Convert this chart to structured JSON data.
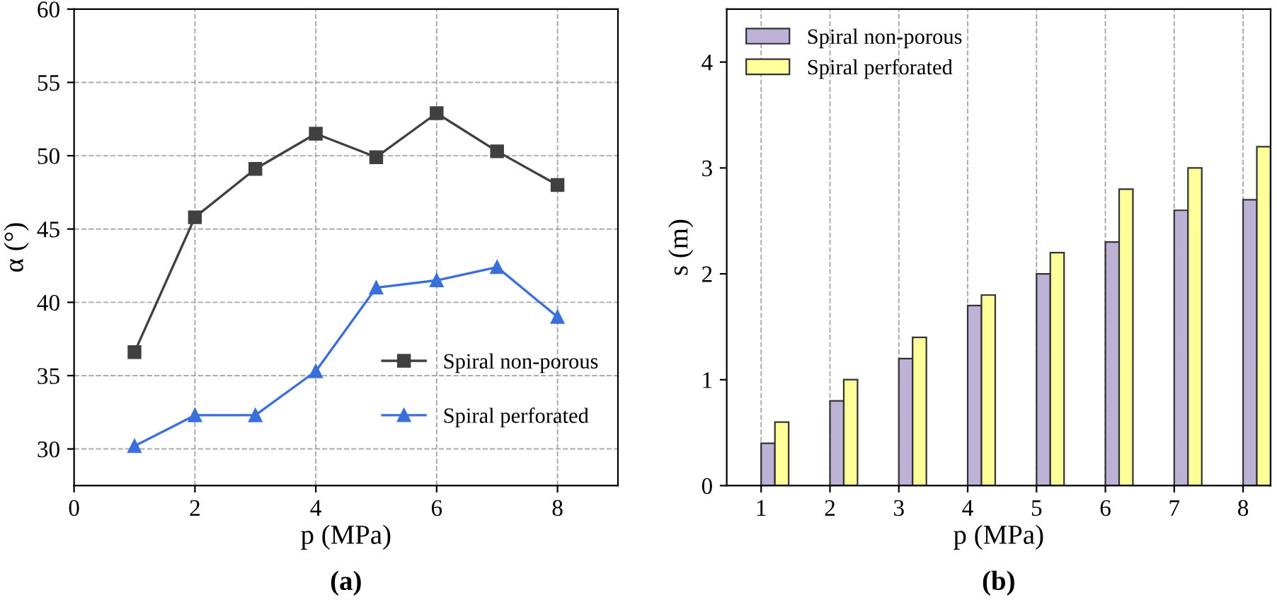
{
  "chart_data": [
    {
      "type": "line",
      "xlabel": "p (MPa)",
      "ylabel": "α (°)",
      "annotations": [
        "(a)"
      ],
      "x": [
        1,
        2,
        3,
        4,
        5,
        6,
        7,
        8
      ],
      "xlim": [
        0,
        9
      ],
      "xticks": [
        0,
        2,
        4,
        6,
        8
      ],
      "ylim": [
        27.5,
        60
      ],
      "yticks": [
        30,
        35,
        40,
        45,
        50,
        55,
        60
      ],
      "grid": true,
      "legend": "right",
      "series": [
        {
          "name": "Spiral non-porous",
          "color": "#404040",
          "marker": "square",
          "values": [
            36.6,
            45.8,
            49.1,
            51.5,
            49.9,
            52.9,
            50.3,
            48.0
          ]
        },
        {
          "name": "Spiral perforated",
          "color": "#3a6fdc",
          "marker": "triangle",
          "values": [
            30.2,
            32.3,
            32.3,
            35.3,
            41.0,
            41.5,
            42.4,
            39.0
          ]
        }
      ]
    },
    {
      "type": "bar",
      "xlabel": "p (MPa)",
      "ylabel": "s (m)",
      "annotations": [
        "(b)"
      ],
      "categories": [
        "1",
        "2",
        "3",
        "4",
        "5",
        "6",
        "7",
        "8"
      ],
      "ylim": [
        0,
        4.5
      ],
      "yticks": [
        0,
        1,
        2,
        3,
        4
      ],
      "grid": "x",
      "legend": "top left",
      "series": [
        {
          "name": "Spiral non-porous",
          "color": "#bdb2d6",
          "values": [
            0.4,
            0.8,
            1.2,
            1.7,
            2.0,
            2.3,
            2.6,
            2.7
          ]
        },
        {
          "name": "Spiral perforated",
          "color": "#ffff99",
          "values": [
            0.6,
            1.0,
            1.4,
            1.8,
            2.2,
            2.8,
            3.0,
            3.2
          ]
        }
      ]
    }
  ]
}
